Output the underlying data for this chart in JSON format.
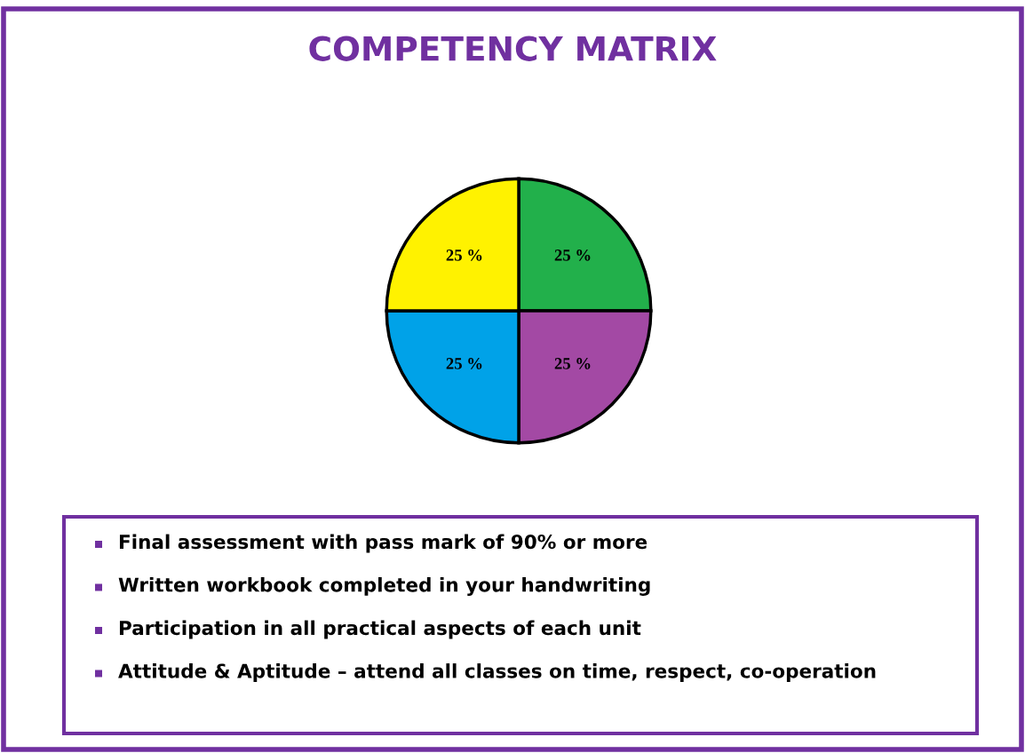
{
  "chart_data": {
    "type": "pie",
    "title": "COMPETENCY MATRIX",
    "categories": [
      null,
      null,
      null,
      null
    ],
    "values": [
      25,
      25,
      25,
      25
    ],
    "colors": [
      "#22b04b",
      "#a349a4",
      "#00a2e8",
      "#fff200"
    ],
    "value_labels": [
      "25 %",
      "25 %",
      "25 %",
      "25 %"
    ],
    "annotations": [
      "Final assessment with pass mark of 90% or more",
      "Written workbook completed in your handwriting",
      "Participation in all practical aspects of each unit",
      "Attitude & Aptitude – attend all classes on time, respect, co-operation"
    ]
  }
}
